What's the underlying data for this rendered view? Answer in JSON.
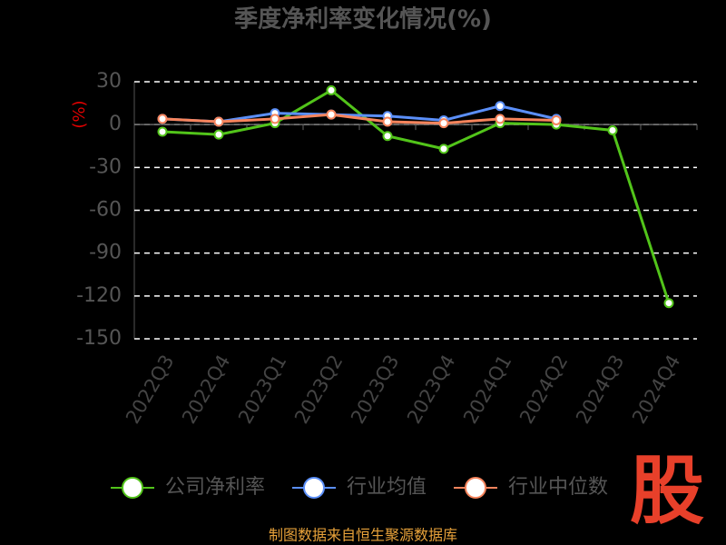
{
  "chart_data": {
    "type": "line",
    "title": "季度净利率变化情况(%)",
    "y_label": "(%)",
    "categories": [
      "2022Q3",
      "2022Q4",
      "2023Q1",
      "2023Q2",
      "2023Q3",
      "2023Q4",
      "2024Q1",
      "2024Q2",
      "2024Q3",
      "2024Q4"
    ],
    "series": [
      {
        "name": "公司净利率",
        "color": "#52c41a",
        "values": [
          -5,
          -7,
          1,
          24,
          -8,
          -17,
          1,
          0,
          -4,
          -125
        ]
      },
      {
        "name": "行业均值",
        "color": "#5b8ff9",
        "values": [
          4,
          2,
          8,
          7,
          6,
          3,
          13,
          4,
          null,
          null
        ]
      },
      {
        "name": "行业中位数",
        "color": "#f6845c",
        "values": [
          4,
          2,
          4,
          7,
          2,
          1,
          4,
          3,
          null,
          null
        ]
      }
    ],
    "ylim": [
      -150,
      30
    ],
    "yticks": [
      30,
      0,
      -30,
      -60,
      -90,
      -120,
      -150
    ],
    "grid": true,
    "source": "制图数据来自恒生聚源数据库",
    "logo": "股"
  }
}
